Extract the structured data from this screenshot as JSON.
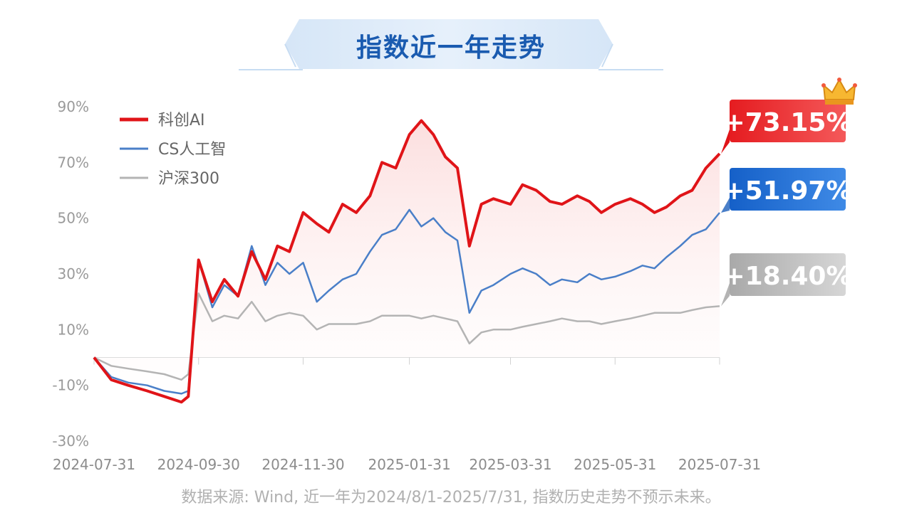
{
  "title": "指数近一年走势",
  "source_note": "数据来源: Wind, 近一年为2024/8/1-2025/7/31, 指数历史走势不预示未来。",
  "colors": {
    "red": "#e01418",
    "blue": "#4a7fc8",
    "gray": "#b4b4b4",
    "title_blue": "#1a5bb0"
  },
  "icons": {
    "crown": "crown-icon"
  },
  "chart_data": {
    "type": "line",
    "ylim": [
      -30,
      90
    ],
    "yticks": [
      "90%",
      "70%",
      "50%",
      "30%",
      "10%",
      "-10%",
      "-30%"
    ],
    "ytick_values": [
      90,
      70,
      50,
      30,
      10,
      -10,
      -30
    ],
    "xticks": [
      "2024-07-31",
      "2024-09-30",
      "2024-11-30",
      "2025-01-31",
      "2025-03-31",
      "2025-05-31",
      "2025-07-31"
    ],
    "x": [
      "2024-07-31",
      "2024-08-10",
      "2024-08-20",
      "2024-08-31",
      "2024-09-10",
      "2024-09-20",
      "2024-09-24",
      "2024-09-30",
      "2024-10-08",
      "2024-10-15",
      "2024-10-23",
      "2024-10-31",
      "2024-11-08",
      "2024-11-15",
      "2024-11-22",
      "2024-11-30",
      "2024-12-08",
      "2024-12-15",
      "2024-12-23",
      "2024-12-31",
      "2025-01-08",
      "2025-01-15",
      "2025-01-23",
      "2025-01-31",
      "2025-02-07",
      "2025-02-14",
      "2025-02-21",
      "2025-02-28",
      "2025-03-07",
      "2025-03-14",
      "2025-03-21",
      "2025-03-31",
      "2025-04-07",
      "2025-04-15",
      "2025-04-23",
      "2025-04-30",
      "2025-05-09",
      "2025-05-16",
      "2025-05-23",
      "2025-05-31",
      "2025-06-09",
      "2025-06-16",
      "2025-06-23",
      "2025-06-30",
      "2025-07-08",
      "2025-07-15",
      "2025-07-23",
      "2025-07-31"
    ],
    "series": [
      {
        "name": "科创AI",
        "color": "#e01418",
        "final_label": "+73.15%",
        "values": [
          0,
          -8,
          -10,
          -12,
          -14,
          -16,
          -14,
          35,
          20,
          28,
          22,
          38,
          28,
          40,
          38,
          52,
          48,
          45,
          55,
          52,
          58,
          70,
          68,
          80,
          85,
          80,
          72,
          68,
          40,
          55,
          57,
          55,
          62,
          60,
          56,
          55,
          58,
          56,
          52,
          55,
          57,
          55,
          52,
          54,
          58,
          60,
          68,
          73.15
        ]
      },
      {
        "name": "CS人工智",
        "color": "#4a7fc8",
        "final_label": "+51.97%",
        "values": [
          0,
          -7,
          -9,
          -10,
          -12,
          -13,
          -12,
          35,
          18,
          26,
          22,
          40,
          26,
          34,
          30,
          34,
          20,
          24,
          28,
          30,
          38,
          44,
          46,
          53,
          47,
          50,
          45,
          42,
          16,
          24,
          26,
          30,
          32,
          30,
          26,
          28,
          27,
          30,
          28,
          29,
          31,
          33,
          32,
          36,
          40,
          44,
          46,
          51.97
        ]
      },
      {
        "name": "沪深300",
        "color": "#b4b4b4",
        "final_label": "+18.40%",
        "values": [
          0,
          -3,
          -4,
          -5,
          -6,
          -8,
          -6,
          23,
          13,
          15,
          14,
          20,
          13,
          15,
          16,
          15,
          10,
          12,
          12,
          12,
          13,
          15,
          15,
          15,
          14,
          15,
          14,
          13,
          5,
          9,
          10,
          10,
          11,
          12,
          13,
          14,
          13,
          13,
          12,
          13,
          14,
          15,
          16,
          16,
          16,
          17,
          18,
          18.4
        ]
      }
    ]
  }
}
